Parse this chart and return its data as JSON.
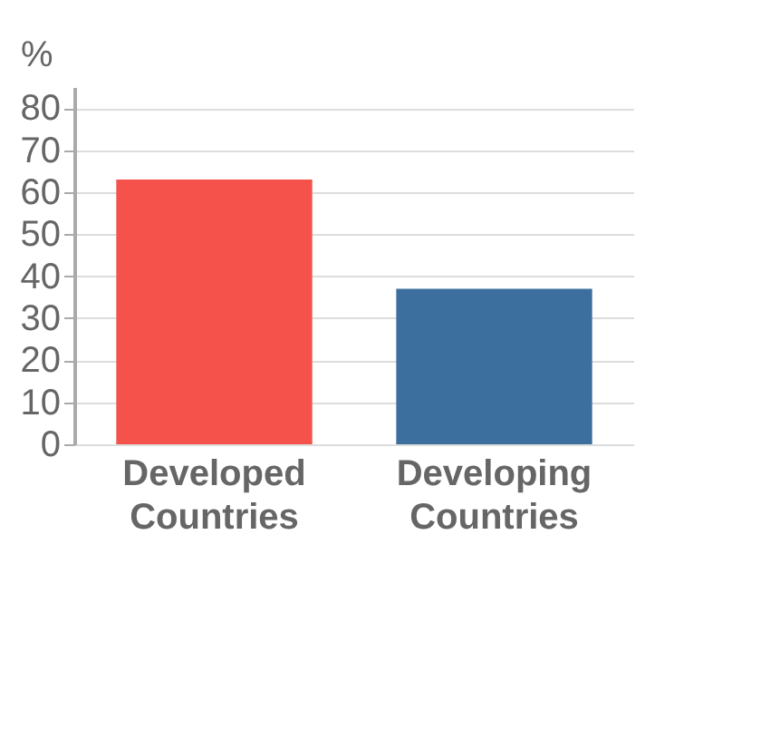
{
  "chart_data": {
    "type": "bar",
    "ylabel": "%",
    "categories": [
      "Developed Countries",
      "Developing Countries"
    ],
    "values": [
      63,
      37
    ],
    "colors": [
      "#f4524a",
      "#3d6f9e"
    ],
    "ylim": [
      0,
      85
    ],
    "yticks": [
      0,
      10,
      20,
      30,
      40,
      50,
      60,
      70,
      80
    ],
    "grid": "y"
  }
}
